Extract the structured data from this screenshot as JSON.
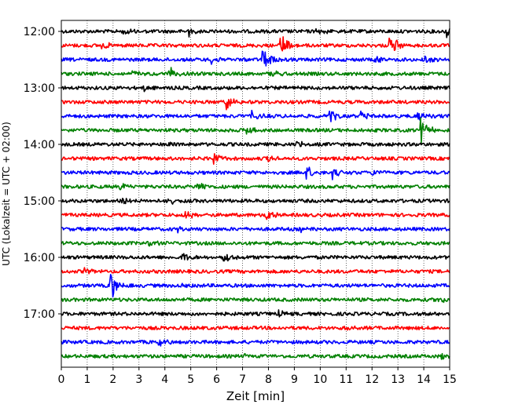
{
  "chart_data": {
    "type": "line",
    "title": "",
    "xlabel": "Zeit  [min]",
    "ylabel": "UTC (Lokalzeit = UTC + 02:00)",
    "xlim": [
      0,
      15
    ],
    "xticks": [
      0,
      1,
      2,
      3,
      4,
      5,
      6,
      7,
      8,
      9,
      10,
      11,
      12,
      13,
      14,
      15
    ],
    "x_grid": "dotted",
    "trace_interval_min": 15,
    "trace_color_cycle": [
      "#000000",
      "#ff0000",
      "#0000ff",
      "#008000"
    ],
    "y_tick_labels": [
      "12:00",
      "13:00",
      "14:00",
      "15:00",
      "16:00",
      "17:00"
    ],
    "traces": [
      {
        "start": "12:00",
        "events": [
          {
            "t": 2.4,
            "amp": 0.5
          },
          {
            "t": 4.9,
            "amp": 0.5
          },
          {
            "t": 9.8,
            "amp": 0.45
          },
          {
            "t": 14.9,
            "amp": 0.55
          }
        ]
      },
      {
        "start": "12:15",
        "events": [
          {
            "t": 8.5,
            "amp": 1.3
          },
          {
            "t": 12.7,
            "amp": 1.2
          },
          {
            "t": 1.6,
            "amp": 0.3
          }
        ]
      },
      {
        "start": "12:30",
        "events": [
          {
            "t": 7.8,
            "amp": 1.0
          },
          {
            "t": 12.1,
            "amp": 0.5
          },
          {
            "t": 14.0,
            "amp": 0.5
          },
          {
            "t": 5.8,
            "amp": 0.3
          }
        ]
      },
      {
        "start": "12:45",
        "events": [
          {
            "t": 4.2,
            "amp": 0.55
          },
          {
            "t": 2.7,
            "amp": 0.3
          },
          {
            "t": 8.1,
            "amp": 0.3
          }
        ]
      },
      {
        "start": "13:00",
        "events": [
          {
            "t": 3.2,
            "amp": 0.3
          }
        ]
      },
      {
        "start": "13:15",
        "events": [
          {
            "t": 6.4,
            "amp": 0.7
          }
        ]
      },
      {
        "start": "13:30",
        "events": [
          {
            "t": 10.4,
            "amp": 0.6
          },
          {
            "t": 13.8,
            "amp": 0.5
          },
          {
            "t": 7.4,
            "amp": 0.4
          },
          {
            "t": 11.6,
            "amp": 0.4
          }
        ]
      },
      {
        "start": "13:45",
        "events": [
          {
            "t": 13.9,
            "amp": 1.1
          },
          {
            "t": 7.2,
            "amp": 0.35
          }
        ]
      },
      {
        "start": "14:00",
        "events": [
          {
            "t": 4.0,
            "amp": 0.3
          },
          {
            "t": 9.1,
            "amp": 0.35
          }
        ]
      },
      {
        "start": "14:15",
        "events": [
          {
            "t": 5.9,
            "amp": 0.45
          },
          {
            "t": 8.0,
            "amp": 0.25
          }
        ]
      },
      {
        "start": "14:30",
        "events": [
          {
            "t": 9.5,
            "amp": 0.6
          },
          {
            "t": 10.5,
            "amp": 0.55
          },
          {
            "t": 12.0,
            "amp": 0.35
          }
        ]
      },
      {
        "start": "14:45",
        "events": [
          {
            "t": 5.3,
            "amp": 0.5
          },
          {
            "t": 2.3,
            "amp": 0.3
          }
        ]
      },
      {
        "start": "15:00",
        "events": [
          {
            "t": 2.3,
            "amp": 0.4
          },
          {
            "t": 4.1,
            "amp": 0.35
          }
        ]
      },
      {
        "start": "15:15",
        "events": [
          {
            "t": 7.9,
            "amp": 0.7
          },
          {
            "t": 4.8,
            "amp": 0.45
          }
        ]
      },
      {
        "start": "15:30",
        "events": [
          {
            "t": 4.5,
            "amp": 0.3
          },
          {
            "t": 9.3,
            "amp": 0.25
          }
        ]
      },
      {
        "start": "15:45",
        "events": [
          {
            "t": 3.4,
            "amp": 0.25
          }
        ]
      },
      {
        "start": "16:00",
        "events": [
          {
            "t": 6.3,
            "amp": 0.55
          },
          {
            "t": 4.7,
            "amp": 0.3
          }
        ]
      },
      {
        "start": "16:15",
        "events": [
          {
            "t": 0.9,
            "amp": 0.25
          }
        ]
      },
      {
        "start": "16:30",
        "events": [
          {
            "t": 1.9,
            "amp": 1.4
          },
          {
            "t": 4.6,
            "amp": 0.35
          }
        ]
      },
      {
        "start": "16:45",
        "events": [
          {
            "t": 14.6,
            "amp": 0.3
          }
        ]
      },
      {
        "start": "17:00",
        "events": [
          {
            "t": 8.4,
            "amp": 0.25
          }
        ]
      },
      {
        "start": "17:15",
        "events": [
          {
            "t": 11.0,
            "amp": 0.2
          }
        ]
      },
      {
        "start": "17:30",
        "events": [
          {
            "t": 3.8,
            "amp": 0.35
          }
        ]
      },
      {
        "start": "17:45",
        "events": [
          {
            "t": 7.0,
            "amp": 0.25
          },
          {
            "t": 14.7,
            "amp": 0.3
          }
        ]
      }
    ]
  }
}
